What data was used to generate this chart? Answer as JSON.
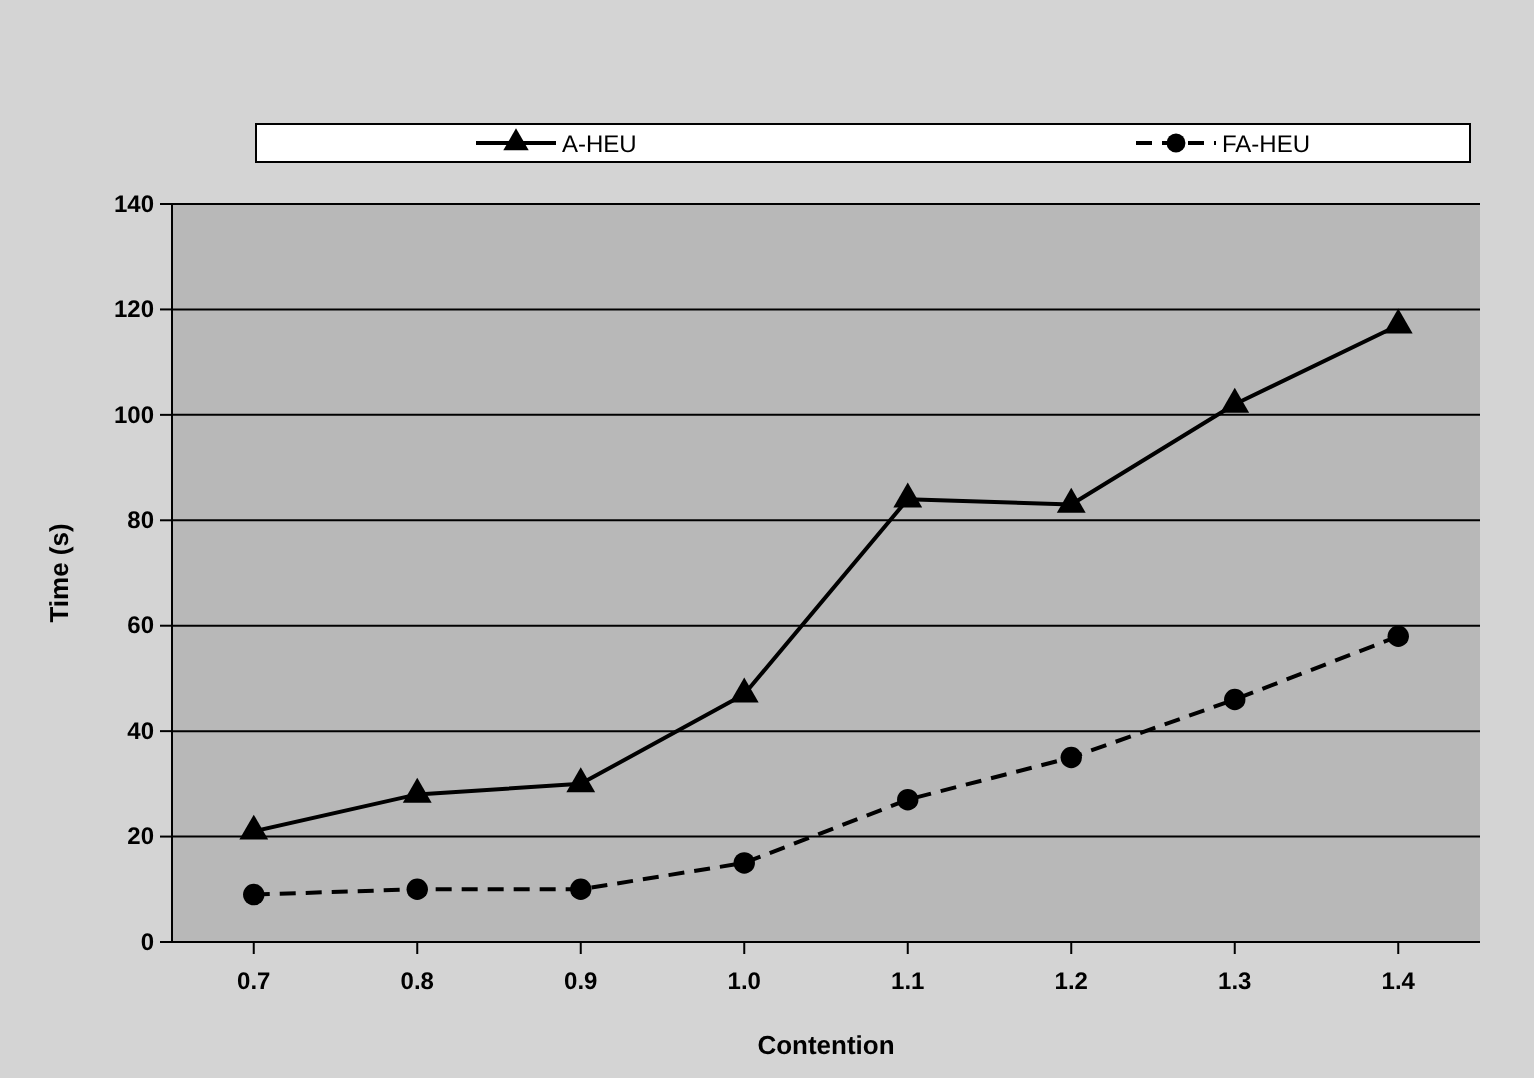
{
  "chart_data": {
    "type": "line",
    "xlabel": "Contention",
    "ylabel": "Time (s)",
    "categories": [
      "0.7",
      "0.8",
      "0.9",
      "1.0",
      "1.1",
      "1.2",
      "1.3",
      "1.4"
    ],
    "series": [
      {
        "name": "A-HEU",
        "color": "#000000",
        "marker": "triangle",
        "line_style": "solid",
        "values": [
          21,
          28,
          30,
          47,
          84,
          83,
          102,
          117
        ]
      },
      {
        "name": "FA-HEU",
        "color": "#000000",
        "marker": "circle",
        "line_style": "dashed",
        "values": [
          9,
          10,
          10,
          15,
          27,
          35,
          46,
          58
        ]
      }
    ],
    "ylim": [
      0,
      140
    ],
    "yticks": [
      0,
      20,
      40,
      60,
      80,
      100,
      120,
      140
    ],
    "grid": "y",
    "legend": "top"
  }
}
